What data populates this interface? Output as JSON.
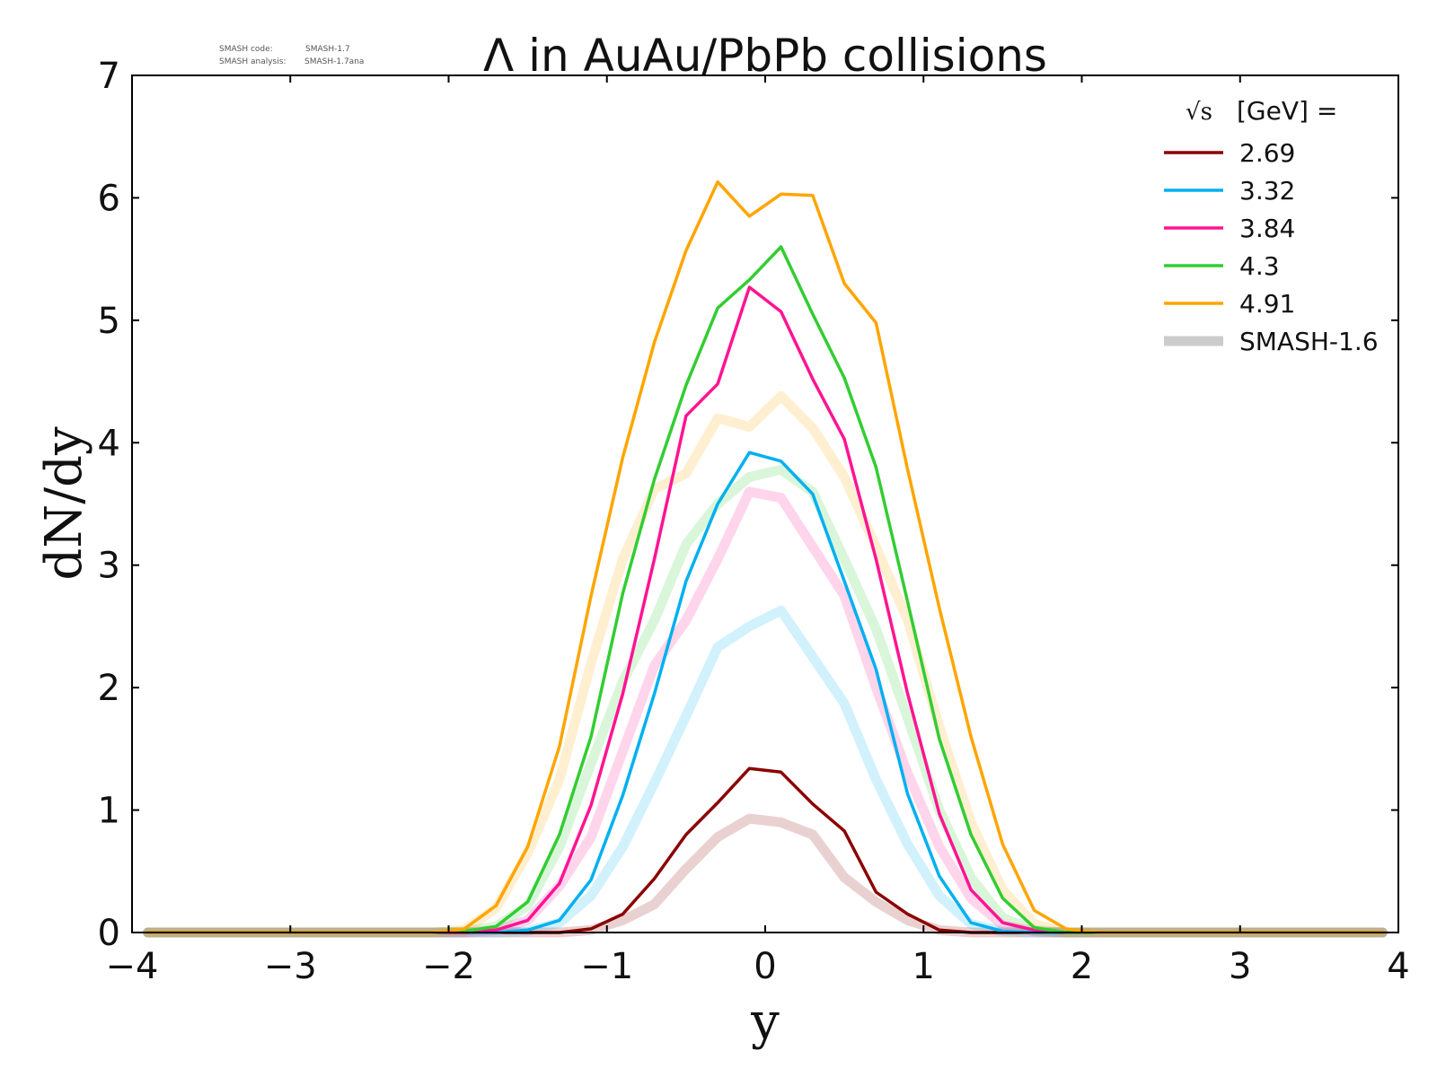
{
  "meta": {
    "code_label": "SMASH code:",
    "code_value": "SMASH-1.7",
    "analysis_label": "SMASH analysis:",
    "analysis_value": "SMASH-1.7ana"
  },
  "chart_data": {
    "type": "line",
    "title": "Λ in AuAu/PbPb collisions",
    "xlabel": "y",
    "ylabel": "dN/dy",
    "xlim": [
      -4,
      4
    ],
    "ylim": [
      0,
      7
    ],
    "xticks": [
      -4,
      -3,
      -2,
      -1,
      0,
      1,
      2,
      3,
      4
    ],
    "xtick_labels": [
      "−4",
      "−3",
      "−2",
      "−1",
      "0",
      "1",
      "2",
      "3",
      "4"
    ],
    "yticks": [
      0,
      1,
      2,
      3,
      4,
      5,
      6,
      7
    ],
    "ytick_labels": [
      "0",
      "1",
      "2",
      "3",
      "4",
      "5",
      "6",
      "7"
    ],
    "grid": false,
    "legend": {
      "placement": "top-right",
      "title_sqrt": "√s",
      "title_text": "[GeV] ="
    },
    "x": [
      -3.9,
      -3.7,
      -3.5,
      -3.3,
      -3.1,
      -2.9,
      -2.7,
      -2.5,
      -2.3,
      -2.1,
      -1.9,
      -1.7,
      -1.5,
      -1.3,
      -1.1,
      -0.9,
      -0.7,
      -0.5,
      -0.3,
      -0.1,
      0.1,
      0.3,
      0.5,
      0.7,
      0.9,
      1.1,
      1.3,
      1.5,
      1.7,
      1.9,
      2.1,
      2.3,
      2.5,
      2.7,
      2.9,
      3.1,
      3.3,
      3.5,
      3.7,
      3.9
    ],
    "series": [
      {
        "name": "2.69",
        "color": "#8b0000",
        "style": "current",
        "values": [
          0,
          0,
          0,
          0,
          0,
          0,
          0,
          0,
          0,
          0,
          0,
          0,
          0,
          0,
          0.03,
          0.15,
          0.44,
          0.8,
          1.06,
          1.34,
          1.31,
          1.05,
          0.83,
          0.33,
          0.15,
          0.02,
          0,
          0,
          0,
          0,
          0,
          0,
          0,
          0,
          0,
          0,
          0,
          0,
          0,
          0
        ]
      },
      {
        "name": "3.32",
        "color": "#00b0f0",
        "style": "current",
        "values": [
          0,
          0,
          0,
          0,
          0,
          0,
          0,
          0,
          0,
          0,
          0,
          0,
          0.02,
          0.1,
          0.43,
          1.12,
          1.95,
          2.87,
          3.5,
          3.92,
          3.85,
          3.58,
          2.87,
          2.15,
          1.13,
          0.46,
          0.08,
          0.01,
          0,
          0,
          0,
          0,
          0,
          0,
          0,
          0,
          0,
          0,
          0,
          0
        ]
      },
      {
        "name": "3.84",
        "color": "#ff1493",
        "style": "current",
        "values": [
          0,
          0,
          0,
          0,
          0,
          0,
          0,
          0,
          0,
          0,
          0,
          0.02,
          0.1,
          0.4,
          1.04,
          1.95,
          3.05,
          4.22,
          4.48,
          5.27,
          5.07,
          4.52,
          4.03,
          3.05,
          1.95,
          0.97,
          0.35,
          0.08,
          0.02,
          0,
          0,
          0,
          0,
          0,
          0,
          0,
          0,
          0,
          0,
          0
        ]
      },
      {
        "name": "4.3",
        "color": "#32cd32",
        "style": "current",
        "values": [
          0,
          0,
          0,
          0,
          0,
          0,
          0,
          0,
          0,
          0,
          0.01,
          0.05,
          0.25,
          0.8,
          1.6,
          2.77,
          3.7,
          4.47,
          5.1,
          5.33,
          5.6,
          5.05,
          4.53,
          3.8,
          2.7,
          1.58,
          0.8,
          0.28,
          0.04,
          0,
          0,
          0,
          0,
          0,
          0,
          0,
          0,
          0,
          0,
          0
        ]
      },
      {
        "name": "4.91",
        "color": "#ffa500",
        "style": "current",
        "values": [
          0,
          0,
          0,
          0,
          0,
          0,
          0,
          0,
          0,
          0,
          0.03,
          0.22,
          0.7,
          1.52,
          2.75,
          3.88,
          4.82,
          5.57,
          6.13,
          5.85,
          6.03,
          6.02,
          5.3,
          4.98,
          3.78,
          2.65,
          1.6,
          0.72,
          0.18,
          0.03,
          0,
          0,
          0,
          0,
          0,
          0,
          0,
          0,
          0,
          0
        ]
      },
      {
        "name": "",
        "color": "#8b0000",
        "style": "reference",
        "values": [
          0,
          0,
          0,
          0,
          0,
          0,
          0,
          0,
          0,
          0,
          0,
          0,
          0,
          0,
          0.02,
          0.1,
          0.23,
          0.52,
          0.78,
          0.93,
          0.9,
          0.8,
          0.45,
          0.25,
          0.1,
          0.02,
          0,
          0,
          0,
          0,
          0,
          0,
          0,
          0,
          0,
          0,
          0,
          0,
          0,
          0
        ]
      },
      {
        "name": "",
        "color": "#00b0f0",
        "style": "reference",
        "values": [
          0,
          0,
          0,
          0,
          0,
          0,
          0,
          0,
          0,
          0,
          0,
          0,
          0.01,
          0.08,
          0.3,
          0.7,
          1.22,
          1.77,
          2.33,
          2.5,
          2.63,
          2.25,
          1.87,
          1.25,
          0.72,
          0.3,
          0.07,
          0.01,
          0,
          0,
          0,
          0,
          0,
          0,
          0,
          0,
          0,
          0,
          0,
          0
        ]
      },
      {
        "name": "",
        "color": "#ff1493",
        "style": "reference",
        "values": [
          0,
          0,
          0,
          0,
          0,
          0,
          0,
          0,
          0,
          0,
          0,
          0.02,
          0.1,
          0.38,
          0.78,
          1.48,
          2.18,
          2.55,
          3.05,
          3.6,
          3.55,
          3.15,
          2.75,
          2.0,
          1.3,
          0.7,
          0.28,
          0.06,
          0.01,
          0,
          0,
          0,
          0,
          0,
          0,
          0,
          0,
          0,
          0,
          0
        ]
      },
      {
        "name": "",
        "color": "#32cd32",
        "style": "reference",
        "values": [
          0,
          0,
          0,
          0,
          0,
          0,
          0,
          0,
          0,
          0,
          0.01,
          0.05,
          0.22,
          0.7,
          1.38,
          2.05,
          2.55,
          3.17,
          3.5,
          3.72,
          3.78,
          3.6,
          3.05,
          2.48,
          1.75,
          1.0,
          0.45,
          0.12,
          0.02,
          0,
          0,
          0,
          0,
          0,
          0,
          0,
          0,
          0,
          0,
          0
        ]
      },
      {
        "name": "",
        "color": "#ffa500",
        "style": "reference",
        "values": [
          0,
          0,
          0,
          0,
          0,
          0,
          0,
          0,
          0,
          0,
          0.02,
          0.2,
          0.65,
          1.25,
          2.2,
          3.05,
          3.62,
          3.75,
          4.2,
          4.13,
          4.38,
          4.12,
          3.72,
          3.15,
          2.55,
          1.68,
          0.9,
          0.35,
          0.07,
          0,
          0,
          0,
          0,
          0,
          0,
          0,
          0,
          0,
          0,
          0
        ]
      }
    ],
    "legend_entries": [
      {
        "label": "2.69",
        "color": "#8b0000",
        "style": "current"
      },
      {
        "label": "3.32",
        "color": "#00b0f0",
        "style": "current"
      },
      {
        "label": "3.84",
        "color": "#ff1493",
        "style": "current"
      },
      {
        "label": "4.3",
        "color": "#32cd32",
        "style": "current"
      },
      {
        "label": "4.91",
        "color": "#ffa500",
        "style": "current"
      },
      {
        "label": "SMASH-1.6",
        "color": "#cccccc",
        "style": "reference"
      }
    ]
  }
}
